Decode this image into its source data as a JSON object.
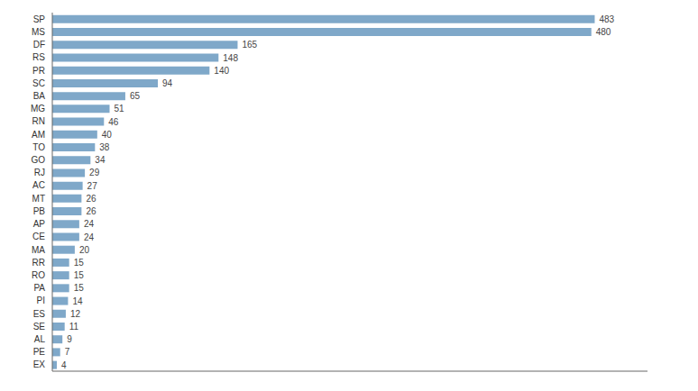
{
  "chart_data": {
    "type": "bar",
    "orientation": "horizontal",
    "categories": [
      "SP",
      "MS",
      "DF",
      "RS",
      "PR",
      "SC",
      "BA",
      "MG",
      "RN",
      "AM",
      "TO",
      "GO",
      "RJ",
      "AC",
      "MT",
      "PB",
      "AP",
      "CE",
      "MA",
      "RR",
      "RO",
      "PA",
      "PI",
      "ES",
      "SE",
      "AL",
      "PE",
      "EX"
    ],
    "values": [
      483,
      480,
      165,
      148,
      140,
      94,
      65,
      51,
      46,
      40,
      38,
      34,
      29,
      27,
      26,
      26,
      24,
      24,
      20,
      15,
      15,
      15,
      14,
      12,
      11,
      9,
      7,
      4
    ],
    "color": "#7fa8c9",
    "xlim": [
      0,
      530
    ],
    "data_labels": true,
    "tick_labels": "y",
    "grid": false
  }
}
